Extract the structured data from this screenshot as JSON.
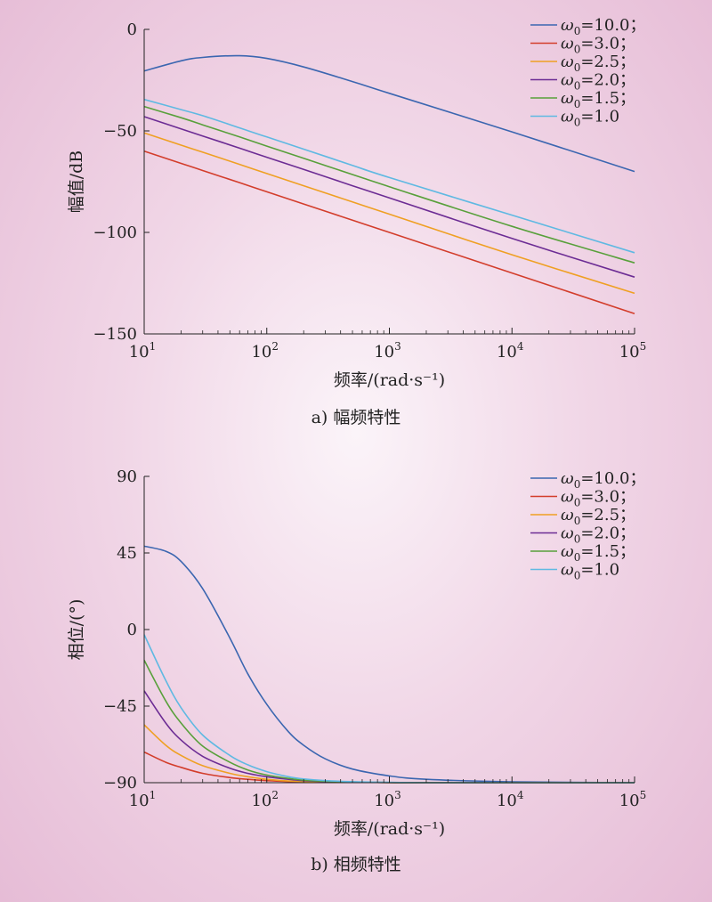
{
  "chart_data": [
    {
      "type": "line",
      "caption": "a) 幅频特性",
      "xlabel": "频率/(rad·s⁻¹)",
      "ylabel": "幅值/dB",
      "x_scale": "log",
      "xlim": [
        10,
        100000
      ],
      "ylim": [
        -150,
        0
      ],
      "x_ticks": [
        {
          "base": "10",
          "exp": "1"
        },
        {
          "base": "10",
          "exp": "2"
        },
        {
          "base": "10",
          "exp": "3"
        },
        {
          "base": "10",
          "exp": "4"
        },
        {
          "base": "10",
          "exp": "5"
        }
      ],
      "y_ticks": [
        "0",
        "−50",
        "−100",
        "−150"
      ],
      "legend_position": "top-right",
      "x": [
        10,
        20,
        30,
        60,
        100,
        200,
        500,
        1000,
        10000,
        100000
      ],
      "series": [
        {
          "name": "ω0=10.0；",
          "symbol": "ω",
          "sub": "0",
          "eq": "=10.0；",
          "color": "#3b66b0",
          "values": [
            -20.5,
            -15.5,
            -13.8,
            -13,
            -14.3,
            -18.5,
            -25.7,
            -31.5,
            -50.5,
            -70
          ]
        },
        {
          "name": "ω0=3.0；",
          "symbol": "ω",
          "sub": "0",
          "eq": "=3.0；",
          "color": "#d33d2b",
          "values": [
            -60,
            -66,
            -69.5,
            -75.5,
            -80,
            -86,
            -94,
            -100,
            -120,
            -140
          ]
        },
        {
          "name": "ω0=2.5；",
          "symbol": "ω",
          "sub": "0",
          "eq": "=2.5；",
          "color": "#efa023",
          "values": [
            -51,
            -57,
            -60.5,
            -66.5,
            -71,
            -77,
            -85,
            -91,
            -111,
            -130
          ]
        },
        {
          "name": "ω0=2.0；",
          "symbol": "ω",
          "sub": "0",
          "eq": "=2.0；",
          "color": "#6c2c94",
          "values": [
            -43,
            -49,
            -52.5,
            -58.5,
            -63,
            -69,
            -77,
            -83,
            -103,
            -122
          ]
        },
        {
          "name": "ω0=1.5；",
          "symbol": "ω",
          "sub": "0",
          "eq": "=1.5；",
          "color": "#58a03b",
          "values": [
            -38,
            -43.5,
            -47,
            -53,
            -57.5,
            -63.5,
            -71.5,
            -77.5,
            -97,
            -115
          ]
        },
        {
          "name": "ω0=1.0",
          "symbol": "ω",
          "sub": "0",
          "eq": "=1.0",
          "color": "#5fb9e2",
          "values": [
            -34.5,
            -39.5,
            -42.5,
            -48.5,
            -53,
            -59,
            -67,
            -73,
            -91.5,
            -110
          ]
        }
      ]
    },
    {
      "type": "line",
      "caption": "b) 相频特性",
      "xlabel": "频率/(rad·s⁻¹)",
      "ylabel": "相位/(°)",
      "x_scale": "log",
      "xlim": [
        10,
        100000
      ],
      "ylim": [
        -90,
        90
      ],
      "x_ticks": [
        {
          "base": "10",
          "exp": "1"
        },
        {
          "base": "10",
          "exp": "2"
        },
        {
          "base": "10",
          "exp": "3"
        },
        {
          "base": "10",
          "exp": "4"
        },
        {
          "base": "10",
          "exp": "5"
        }
      ],
      "y_ticks": [
        "90",
        "45",
        "0",
        "−45",
        "−90"
      ],
      "legend_position": "top-right",
      "x": [
        10,
        15,
        20,
        30,
        50,
        70,
        100,
        150,
        200,
        300,
        500,
        1000,
        2000,
        10000,
        100000
      ],
      "series": [
        {
          "name": "ω0=10.0；",
          "symbol": "ω",
          "sub": "0",
          "eq": "=10.0；",
          "color": "#3b66b0",
          "values": [
            49,
            46,
            40,
            24,
            -5,
            -26,
            -44,
            -60,
            -68,
            -76,
            -82,
            -86,
            -88,
            -89.5,
            -90
          ]
        },
        {
          "name": "ω0=3.0；",
          "symbol": "ω",
          "sub": "0",
          "eq": "=3.0；",
          "color": "#d33d2b",
          "values": [
            -72,
            -78,
            -81,
            -84.5,
            -87,
            -88,
            -88.8,
            -89.3,
            -89.5,
            -89.7,
            -89.8,
            -89.9,
            -90,
            -90,
            -90
          ]
        },
        {
          "name": "ω0=2.5；",
          "symbol": "ω",
          "sub": "0",
          "eq": "=2.5；",
          "color": "#efa023",
          "values": [
            -56,
            -68,
            -74,
            -80,
            -84.5,
            -86.5,
            -88,
            -89,
            -89.3,
            -89.6,
            -89.8,
            -89.9,
            -90,
            -90,
            -90
          ]
        },
        {
          "name": "ω0=2.0；",
          "symbol": "ω",
          "sub": "0",
          "eq": "=2.0；",
          "color": "#6c2c94",
          "values": [
            -36,
            -55,
            -65,
            -74.5,
            -81.5,
            -84.5,
            -86.5,
            -88,
            -88.8,
            -89.3,
            -89.6,
            -89.9,
            -90,
            -90,
            -90
          ]
        },
        {
          "name": "ω0=1.5；",
          "symbol": "ω",
          "sub": "0",
          "eq": "=1.5；",
          "color": "#58a03b",
          "values": [
            -18,
            -42,
            -55,
            -68.5,
            -78,
            -82.5,
            -85.5,
            -87.5,
            -88.5,
            -89.2,
            -89.6,
            -89.9,
            -90,
            -90,
            -90
          ]
        },
        {
          "name": "ω0=1.0",
          "symbol": "ω",
          "sub": "0",
          "eq": "=1.0",
          "color": "#5fb9e2",
          "values": [
            -3,
            -30,
            -46,
            -62,
            -74,
            -79.5,
            -83.5,
            -86.5,
            -87.8,
            -88.8,
            -89.4,
            -89.8,
            -90,
            -90,
            -90
          ]
        }
      ]
    }
  ]
}
